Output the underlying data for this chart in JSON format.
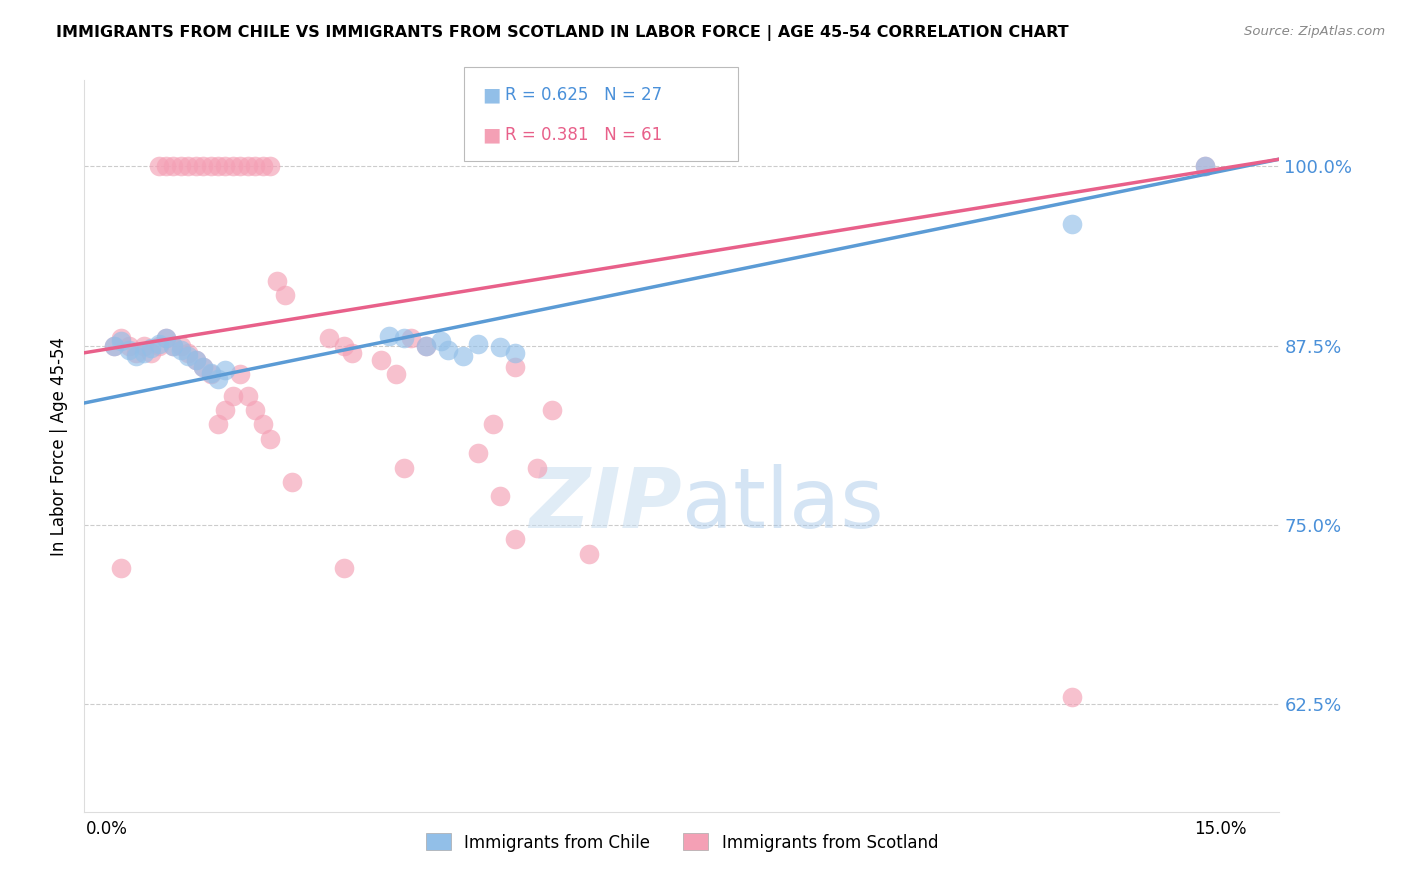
{
  "title": "IMMIGRANTS FROM CHILE VS IMMIGRANTS FROM SCOTLAND IN LABOR FORCE | AGE 45-54 CORRELATION CHART",
  "source": "Source: ZipAtlas.com",
  "ylabel": "In Labor Force | Age 45-54",
  "ytick_positions": [
    0.625,
    0.75,
    0.875,
    1.0
  ],
  "ytick_labels_right": [
    "62.5%",
    "75.0%",
    "87.5%",
    "100.0%"
  ],
  "ymin": 0.55,
  "ymax": 1.06,
  "xmin": -0.003,
  "xmax": 0.158,
  "legend_r_chile": "R = 0.625",
  "legend_n_chile": "N = 27",
  "legend_r_scotland": "R = 0.381",
  "legend_n_scotland": "N = 61",
  "color_chile": "#92bfe8",
  "color_scotland": "#f4a0b5",
  "color_chile_line": "#5b9bd5",
  "color_scotland_line": "#e8608a",
  "chile_x": [
    0.001,
    0.002,
    0.003,
    0.004,
    0.005,
    0.006,
    0.007,
    0.008,
    0.009,
    0.01,
    0.011,
    0.012,
    0.013,
    0.014,
    0.015,
    0.016,
    0.038,
    0.04,
    0.043,
    0.045,
    0.046,
    0.048,
    0.05,
    0.053,
    0.055,
    0.13,
    0.148
  ],
  "chile_y": [
    0.875,
    0.878,
    0.872,
    0.868,
    0.87,
    0.873,
    0.876,
    0.88,
    0.875,
    0.872,
    0.868,
    0.865,
    0.86,
    0.856,
    0.852,
    0.858,
    0.882,
    0.88,
    0.875,
    0.878,
    0.872,
    0.868,
    0.876,
    0.874,
    0.87,
    0.96,
    1.0
  ],
  "scotland_x": [
    0.001,
    0.002,
    0.003,
    0.004,
    0.005,
    0.006,
    0.007,
    0.008,
    0.009,
    0.01,
    0.011,
    0.012,
    0.013,
    0.014,
    0.015,
    0.016,
    0.017,
    0.018,
    0.019,
    0.02,
    0.021,
    0.022,
    0.007,
    0.008,
    0.009,
    0.01,
    0.011,
    0.012,
    0.013,
    0.014,
    0.015,
    0.016,
    0.017,
    0.018,
    0.019,
    0.02,
    0.021,
    0.022,
    0.023,
    0.024,
    0.03,
    0.032,
    0.033,
    0.037,
    0.039,
    0.041,
    0.043,
    0.05,
    0.052,
    0.053,
    0.055,
    0.06,
    0.065,
    0.002,
    0.025,
    0.032,
    0.04,
    0.055,
    0.058,
    0.13,
    0.148
  ],
  "scotland_y": [
    0.875,
    0.88,
    0.875,
    0.87,
    0.875,
    0.87,
    0.875,
    0.88,
    0.875,
    0.875,
    0.87,
    0.865,
    0.86,
    0.855,
    0.82,
    0.83,
    0.84,
    0.855,
    0.84,
    0.83,
    0.82,
    0.81,
    1.0,
    1.0,
    1.0,
    1.0,
    1.0,
    1.0,
    1.0,
    1.0,
    1.0,
    1.0,
    1.0,
    1.0,
    1.0,
    1.0,
    1.0,
    1.0,
    0.92,
    0.91,
    0.88,
    0.875,
    0.87,
    0.865,
    0.855,
    0.88,
    0.875,
    0.8,
    0.82,
    0.77,
    0.86,
    0.83,
    0.73,
    0.72,
    0.78,
    0.72,
    0.79,
    0.74,
    0.79,
    0.63,
    1.0
  ]
}
